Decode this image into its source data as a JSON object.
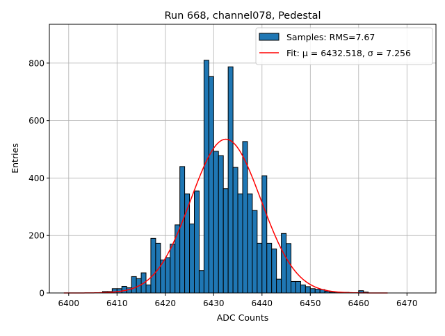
{
  "chart_data": {
    "type": "bar",
    "title": "Run 668, channel078, Pedestal",
    "xlabel": "ADC Counts",
    "ylabel": "Entries",
    "xlim": [
      6396,
      6476
    ],
    "ylim": [
      0,
      935
    ],
    "xticks": [
      6400,
      6410,
      6420,
      6430,
      6440,
      6450,
      6460,
      6470
    ],
    "yticks": [
      0,
      200,
      400,
      600,
      800
    ],
    "grid": true,
    "legend_placement": "top-right",
    "bin_width": 1,
    "bin_start": 6407,
    "bin_end": 6461,
    "values": [
      5,
      5,
      15,
      15,
      23,
      18,
      57,
      50,
      70,
      28,
      190,
      173,
      115,
      123,
      170,
      237,
      440,
      345,
      240,
      355,
      78,
      810,
      753,
      493,
      478,
      363,
      787,
      437,
      345,
      527,
      345,
      287,
      173,
      408,
      173,
      153,
      48,
      207,
      172,
      40,
      40,
      28,
      22,
      15,
      13,
      12,
      6,
      3,
      3,
      0,
      2,
      0,
      0,
      8,
      3
    ],
    "series": [
      {
        "name": "Samples: RMS=7.67",
        "kind": "histogram",
        "color": "#1f77b4",
        "edgecolor": "#000000"
      },
      {
        "name": "Fit: μ = 6432.518, σ = 7.256",
        "kind": "gaussian-fit",
        "color": "#ff0000",
        "mu": 6432.518,
        "sigma": 7.256,
        "peak": 535,
        "x_range": [
          6399,
          6466
        ]
      }
    ]
  }
}
